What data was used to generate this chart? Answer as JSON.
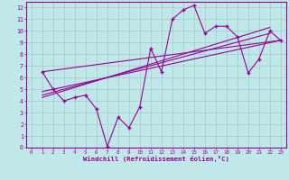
{
  "background_color": "#c0e8e8",
  "grid_color": "#a0cccc",
  "line_color": "#990099",
  "xlabel": "Windchill (Refroidissement éolien,°C)",
  "xlim": [
    -0.5,
    23.5
  ],
  "ylim": [
    0,
    12.5
  ],
  "xticks": [
    0,
    1,
    2,
    3,
    4,
    5,
    6,
    7,
    8,
    9,
    10,
    11,
    12,
    13,
    14,
    15,
    16,
    17,
    18,
    19,
    20,
    21,
    22,
    23
  ],
  "yticks": [
    0,
    1,
    2,
    3,
    4,
    5,
    6,
    7,
    8,
    9,
    10,
    11,
    12
  ],
  "series1_x": [
    1,
    2,
    3,
    4,
    5,
    6,
    7,
    8,
    9,
    10,
    11,
    12,
    13,
    14,
    15,
    16,
    17,
    18,
    19,
    20,
    21,
    22,
    23
  ],
  "series1_y": [
    6.5,
    5.0,
    4.0,
    4.3,
    4.5,
    3.3,
    0.1,
    2.6,
    1.7,
    3.5,
    8.5,
    6.5,
    11.0,
    11.8,
    12.2,
    9.8,
    10.4,
    10.4,
    9.5,
    6.4,
    7.6,
    10.0,
    9.2
  ],
  "line1_x": [
    1,
    23
  ],
  "line1_y": [
    6.5,
    9.2
  ],
  "line2_x": [
    1,
    23
  ],
  "line2_y": [
    4.8,
    9.2
  ],
  "line3_x": [
    1,
    22
  ],
  "line3_y": [
    4.5,
    9.8
  ],
  "line4_x": [
    1,
    22
  ],
  "line4_y": [
    4.3,
    10.3
  ]
}
